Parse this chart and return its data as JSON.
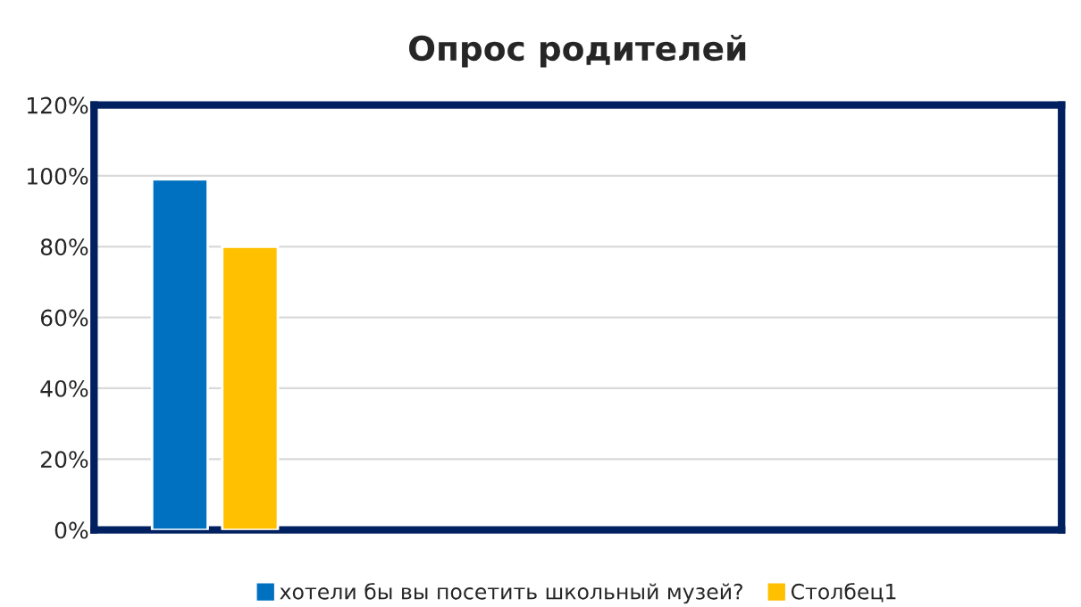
{
  "chart_data": {
    "type": "bar",
    "title": "Опрос родителей",
    "categories": [
      null,
      null,
      null,
      null
    ],
    "series": [
      {
        "name": "хотели бы вы посетить школьный музей?",
        "color": "#0070c0",
        "values": [
          99,
          null,
          null,
          null
        ]
      },
      {
        "name": "Столбец1",
        "color": "#ffc000",
        "values": [
          80,
          null,
          null,
          null
        ]
      }
    ],
    "ylim": [
      0,
      120
    ],
    "yticks": [
      {
        "value": 0,
        "label": "0%"
      },
      {
        "value": 20,
        "label": "20%"
      },
      {
        "value": 40,
        "label": "40%"
      },
      {
        "value": 60,
        "label": "60%"
      },
      {
        "value": 80,
        "label": "80%"
      },
      {
        "value": 100,
        "label": "100%"
      },
      {
        "value": 120,
        "label": "120%"
      }
    ],
    "grid": "y",
    "legend": "bottom"
  }
}
